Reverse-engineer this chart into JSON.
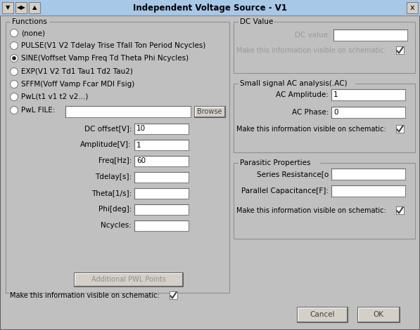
{
  "title": "Independent Voltage Source - V1",
  "bg_color": "#c0c0c0",
  "title_bar_color": "#a8c8e8",
  "white": "#ffffff",
  "light_gray": "#d4d0c8",
  "dark_gray": "#808080",
  "mid_gray": "#b0b0b0",
  "functions_label": "Functions",
  "radio_options": [
    "(none)",
    "PULSE(V1 V2 Tdelay Trise Tfall Ton Period Ncycles)",
    "SINE(Voffset Vamp Freq Td Theta Phi Ncycles)",
    "EXP(V1 V2 Td1 Tau1 Td2 Tau2)",
    "SFFM(Voff Vamp Fcar MDI Fsig)",
    "PwL(t1 v1 t2 v2...)",
    "PwL FILE:"
  ],
  "selected_radio": 2,
  "param_labels": [
    "DC offset[V]:",
    "Amplitude[V]:",
    "Freq[Hz]:",
    "Tdelay[s]:",
    "Theta[1/s]:",
    "Phi[deg]:",
    "Ncycles:"
  ],
  "param_values": [
    "10",
    "1",
    "60",
    "",
    "",
    "",
    ""
  ],
  "dc_value_label": "DC Value",
  "ac_label": "Small signal AC analysis(.AC)",
  "ac_amplitude_label": "AC Amplitude:",
  "ac_amplitude_value": "1",
  "ac_phase_label": "AC Phase:",
  "ac_phase_value": "0",
  "parasitic_label": "Parasitic Properties",
  "series_resistance_label": "Series Resistance[o",
  "parallel_cap_label": "Parallel Capacitance[F]:",
  "schematic_label": "Make this information visible on schematic:",
  "pwl_button": "Additional PWL Points",
  "cancel_button": "Cancel",
  "ok_button": "OK",
  "browse_button": "Browse",
  "fs": 7.5,
  "fs_title": 8.5
}
